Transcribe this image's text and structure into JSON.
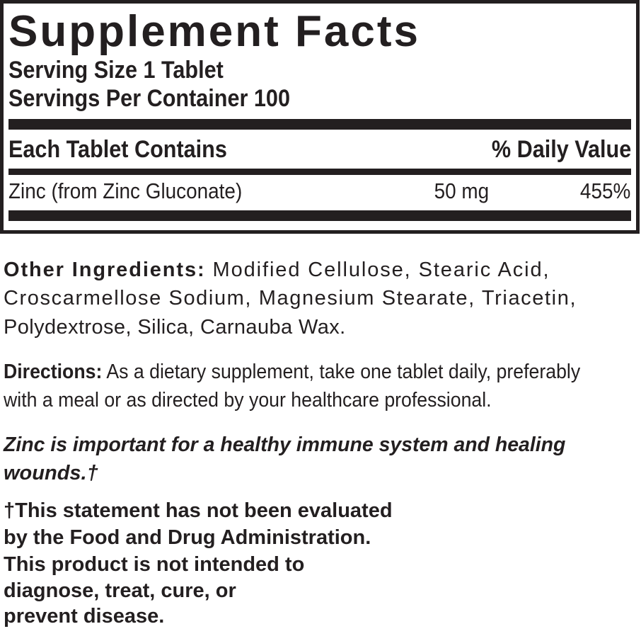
{
  "facts": {
    "title": "Supplement Facts",
    "serving_size": "Serving Size 1 Tablet",
    "servings_per_container": "Servings Per Container 100",
    "col_header_left": "Each Tablet Contains",
    "col_header_right": "% Daily Value",
    "rows": [
      {
        "name": "Zinc (from Zinc Gluconate)",
        "amount": "50 mg",
        "dv": "455%"
      }
    ]
  },
  "other_ingredients": {
    "label": "Other Ingredients:",
    "lines": [
      "Modified Cellulose, Stearic Acid,",
      "Croscarmellose Sodium, Magnesium Stearate, Triacetin,",
      "Polydextrose, Silica, Carnauba Wax."
    ]
  },
  "directions": {
    "label": "Directions:",
    "lines": [
      "As a dietary supplement, take one tablet daily, preferably",
      "with a meal or as directed by your healthcare professional."
    ]
  },
  "claim": {
    "lines": [
      "Zinc is important for a healthy immune system and healing",
      "wounds.†"
    ]
  },
  "disclaimer": {
    "lines": [
      "†This statement has not been evaluated",
      "by the Food and Drug Administration.",
      "This product is not intended to",
      "diagnose, treat, cure, or",
      "prevent disease."
    ]
  }
}
